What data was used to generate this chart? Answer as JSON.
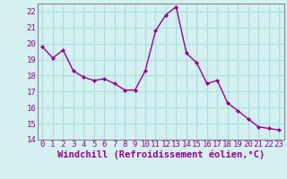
{
  "x": [
    0,
    1,
    2,
    3,
    4,
    5,
    6,
    7,
    8,
    9,
    10,
    11,
    12,
    13,
    14,
    15,
    16,
    17,
    18,
    19,
    20,
    21,
    22,
    23
  ],
  "y": [
    19.8,
    19.1,
    19.6,
    18.3,
    17.9,
    17.7,
    17.8,
    17.5,
    17.1,
    17.1,
    18.3,
    20.8,
    21.8,
    22.3,
    19.4,
    18.8,
    17.5,
    17.7,
    16.3,
    15.8,
    15.3,
    14.8,
    14.7,
    14.6
  ],
  "line_color": "#990099",
  "marker": "D",
  "marker_size": 2,
  "bg_color": "#d4f0f0",
  "grid_color": "#aadddd",
  "xlabel": "Windchill (Refroidissement éolien,°C)",
  "xlabel_color": "#990099",
  "ylim": [
    14,
    22.5
  ],
  "yticks": [
    14,
    15,
    16,
    17,
    18,
    19,
    20,
    21,
    22
  ],
  "xticks": [
    0,
    1,
    2,
    3,
    4,
    5,
    6,
    7,
    8,
    9,
    10,
    11,
    12,
    13,
    14,
    15,
    16,
    17,
    18,
    19,
    20,
    21,
    22,
    23
  ],
  "tick_color": "#990099",
  "tick_fontsize": 6.5,
  "xlabel_fontsize": 7.5,
  "line_width": 1.0
}
